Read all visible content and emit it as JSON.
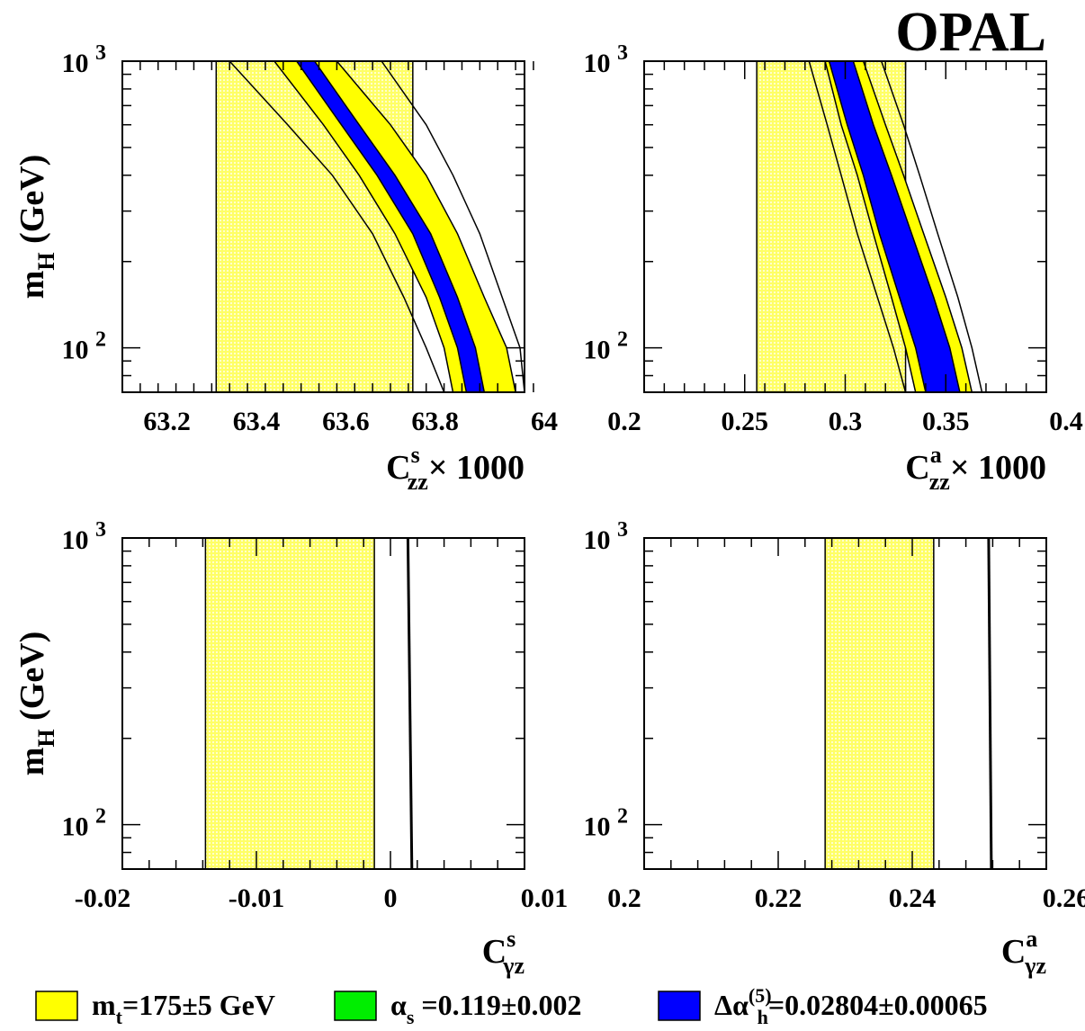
{
  "brand": "OPAL",
  "colors": {
    "mt_band": "#ffff00",
    "alpha_band": "#00ee00",
    "delta_band": "#0000ff",
    "measurement_band": "#ffff99",
    "line": "#000000"
  },
  "legend": [
    {
      "key": "mt",
      "label": "m",
      "sub": "t",
      "rest": "=175±5 GeV"
    },
    {
      "key": "alpha",
      "label": "α",
      "sub": "s",
      "rest": " =0.119±0.002"
    },
    {
      "key": "delta",
      "label": "Δα",
      "sub": "h",
      "sup": "(5)",
      "rest": "=0.02804±0.00065"
    }
  ],
  "chart_data": [
    {
      "type": "area",
      "panel": "top-left",
      "xlabel": {
        "main": "C",
        "sup": "s",
        "sub": "zz",
        "suffix": "× 1000"
      },
      "ylabel": {
        "main": "m",
        "sub": "H",
        "suffix": " (GeV)"
      },
      "xlim": [
        63.1,
        64.0
      ],
      "ylim": [
        70,
        1000
      ],
      "yscale": "log",
      "xticks": [
        "63.2",
        "63.4",
        "63.6",
        "63.8",
        "64"
      ],
      "xtick_values": [
        63.2,
        63.4,
        63.6,
        63.8,
        64.0
      ],
      "yticks": [
        {
          "value": 100,
          "base": "10",
          "exp": "2"
        },
        {
          "value": 1000,
          "base": "10",
          "exp": "3"
        }
      ],
      "measurement_band": [
        63.31,
        63.75
      ],
      "mt_band": {
        "m": [
          70,
          100,
          150,
          250,
          400,
          600,
          1000
        ],
        "left": [
          63.84,
          63.82,
          63.78,
          63.71,
          63.63,
          63.55,
          63.44
        ],
        "right": [
          63.98,
          63.96,
          63.91,
          63.85,
          63.78,
          63.7,
          63.58
        ]
      },
      "delta_band": {
        "m": [
          70,
          100,
          150,
          250,
          400,
          600,
          1000
        ],
        "left": [
          63.87,
          63.85,
          63.81,
          63.75,
          63.67,
          63.59,
          63.49
        ],
        "right": [
          63.91,
          63.89,
          63.85,
          63.79,
          63.71,
          63.63,
          63.53
        ]
      },
      "thin_lines": [
        {
          "m": [
            70,
            100,
            150,
            250,
            400,
            600,
            1000
          ],
          "x": [
            63.82,
            63.78,
            63.73,
            63.66,
            63.57,
            63.47,
            63.34
          ]
        },
        {
          "m": [
            70,
            100,
            150,
            250,
            400,
            600,
            1000
          ],
          "x": [
            64.0,
            63.99,
            63.95,
            63.9,
            63.84,
            63.78,
            63.68
          ]
        }
      ]
    },
    {
      "type": "area",
      "panel": "top-right",
      "xlabel": {
        "main": "C",
        "sup": "a",
        "sub": "zz",
        "suffix": "× 1000"
      },
      "xlim": [
        0.2,
        0.4
      ],
      "ylim": [
        70,
        1000
      ],
      "yscale": "log",
      "xticks": [
        "0.2",
        "0.25",
        "0.3",
        "0.35",
        "0.4"
      ],
      "xtick_values": [
        0.2,
        0.25,
        0.3,
        0.35,
        0.4
      ],
      "yticks": [
        {
          "value": 100,
          "base": "10",
          "exp": "2"
        },
        {
          "value": 1000,
          "base": "10",
          "exp": "3"
        }
      ],
      "measurement_band": [
        0.256,
        0.33
      ],
      "mt_band": {
        "m": [
          70,
          100,
          150,
          250,
          400,
          600,
          1000
        ],
        "left": [
          0.335,
          0.33,
          0.323,
          0.314,
          0.306,
          0.298,
          0.29
        ],
        "right": [
          0.363,
          0.358,
          0.35,
          0.339,
          0.329,
          0.32,
          0.309
        ]
      },
      "delta_band": {
        "m": [
          70,
          100,
          150,
          250,
          400,
          600,
          1000
        ],
        "left": [
          0.34,
          0.335,
          0.327,
          0.317,
          0.309,
          0.301,
          0.292
        ],
        "right": [
          0.357,
          0.352,
          0.344,
          0.333,
          0.323,
          0.314,
          0.304
        ]
      },
      "thin_lines": [
        {
          "m": [
            70,
            100,
            150,
            250,
            400,
            600,
            1000
          ],
          "x": [
            0.33,
            0.324,
            0.316,
            0.306,
            0.298,
            0.291,
            0.282
          ]
        },
        {
          "m": [
            70,
            100,
            150,
            250,
            400,
            600,
            1000
          ],
          "x": [
            0.368,
            0.363,
            0.356,
            0.346,
            0.337,
            0.329,
            0.318
          ]
        }
      ]
    },
    {
      "type": "area",
      "panel": "bottom-left",
      "xlabel": {
        "main": "C",
        "sup": "s",
        "sub": "γz",
        "suffix": ""
      },
      "ylabel": {
        "main": "m",
        "sub": "H",
        "suffix": " (GeV)"
      },
      "xlim": [
        -0.02,
        0.01
      ],
      "ylim": [
        70,
        1000
      ],
      "yscale": "log",
      "xticks": [
        "-0.02",
        "-0.01",
        "0",
        "0.01"
      ],
      "xtick_values": [
        -0.02,
        -0.01,
        0,
        0.01
      ],
      "yticks": [
        {
          "value": 100,
          "base": "10",
          "exp": "2"
        },
        {
          "value": 1000,
          "base": "10",
          "exp": "3"
        }
      ],
      "measurement_band": [
        -0.0138,
        -0.0012
      ],
      "prediction_line": {
        "m": [
          70,
          1000
        ],
        "x": [
          0.0016,
          0.0013
        ]
      }
    },
    {
      "type": "area",
      "panel": "bottom-right",
      "xlabel": {
        "main": "C",
        "sup": "a",
        "sub": "γz",
        "suffix": ""
      },
      "xlim": [
        0.2,
        0.26
      ],
      "ylim": [
        70,
        1000
      ],
      "yscale": "log",
      "xticks": [
        "0.2",
        "0.22",
        "0.24",
        "0.26"
      ],
      "xtick_values": [
        0.2,
        0.22,
        0.24,
        0.26
      ],
      "yticks": [
        {
          "value": 100,
          "base": "10",
          "exp": "2"
        },
        {
          "value": 1000,
          "base": "10",
          "exp": "3"
        }
      ],
      "measurement_band": [
        0.227,
        0.2432
      ],
      "prediction_line": {
        "m": [
          70,
          1000
        ],
        "x": [
          0.2518,
          0.2514
        ]
      }
    }
  ]
}
